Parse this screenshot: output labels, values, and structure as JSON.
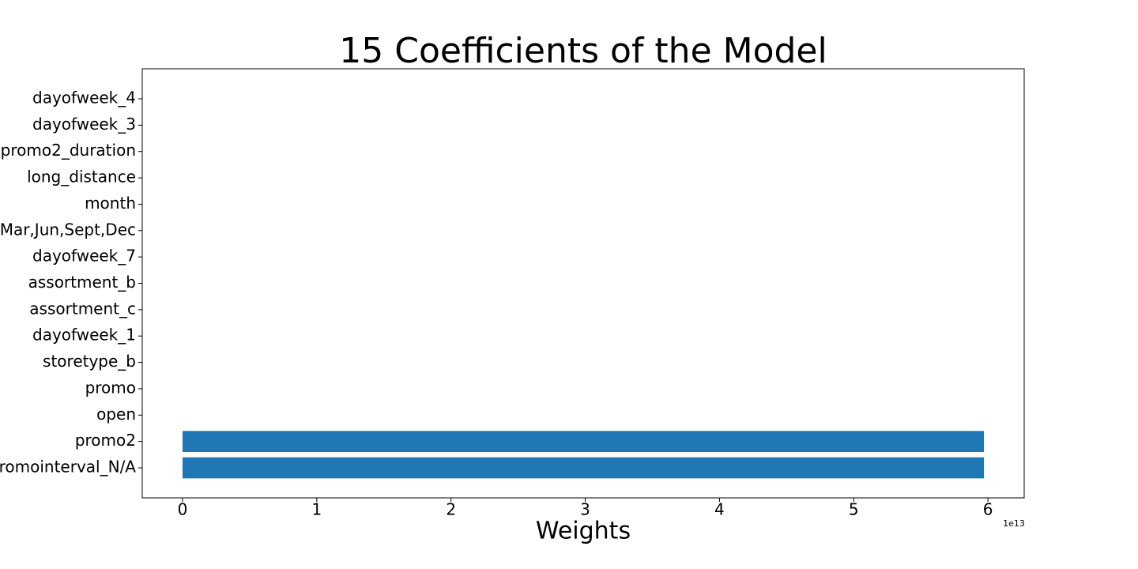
{
  "chart_data": {
    "type": "barh",
    "title": "15 Coefficients of the Model",
    "x_label": "Weights",
    "x_offset_label": "1e13",
    "categories": [
      "dayofweek_4",
      "dayofweek_3",
      "promo2_duration",
      "long_distance",
      "month",
      "promointerval_Mar,Jun,Sept,Dec",
      "dayofweek_7",
      "assortment_b",
      "assortment_c",
      "dayofweek_1",
      "storetype_b",
      "promo",
      "open",
      "promo2",
      "promointerval_N/A"
    ],
    "values": [
      0,
      0,
      0,
      0,
      0,
      0,
      0,
      0,
      0,
      0,
      0,
      0,
      0,
      5.97,
      5.97
    ],
    "color": "#1f77b4",
    "xlim": [
      -0.3,
      6.27
    ],
    "xticks": [
      0,
      1,
      2,
      3,
      4,
      5,
      6
    ],
    "grid": false
  }
}
